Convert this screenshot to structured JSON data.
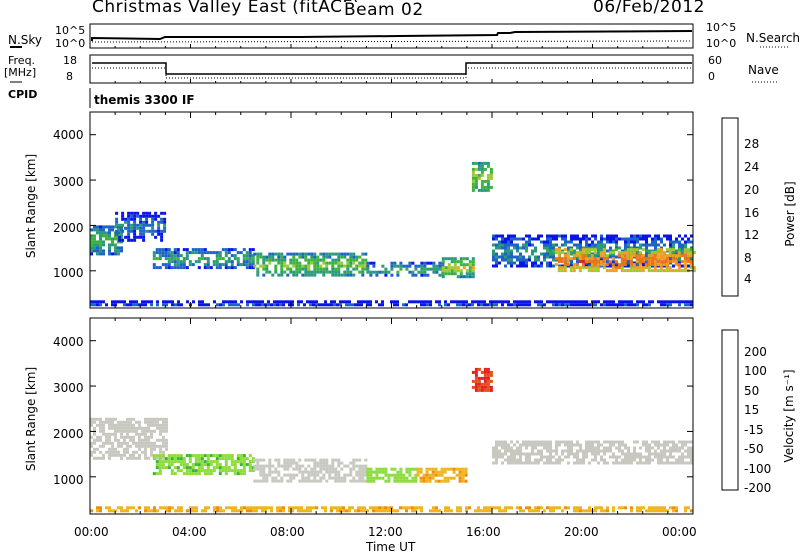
{
  "header": {
    "title": "Christmas Valley East (fitACF)",
    "beam": "Beam 02",
    "date": "06/Feb/2012"
  },
  "top_panels": {
    "nsky_label": "N.Sky",
    "nsky_ticks": [
      "10^5",
      "10^0"
    ],
    "nsearch_label": "N.Search",
    "nsearch_ticks": [
      "10^5",
      "10^0"
    ],
    "freq_label": "Freq.",
    "freq_unit": "[MHz]",
    "freq_ticks": [
      "18",
      "8"
    ],
    "nave_label": "Nave",
    "nave_ticks": [
      "60",
      "0"
    ],
    "cpid_label": "CPID",
    "cpid_value": "themis 3300 IF"
  },
  "chart_data": [
    {
      "type": "heatmap",
      "panel": "power",
      "ylabel": "Slant Range [km]",
      "ylim": [
        180,
        4500
      ],
      "xlim": [
        0,
        24
      ],
      "yticks": [
        "4000",
        "3000",
        "2000",
        "1000"
      ],
      "colorbar": {
        "label": "Power [dB]",
        "ticks": [
          "28",
          "24",
          "20",
          "16",
          "12",
          "8",
          "4"
        ],
        "colors": [
          "#0a14e6",
          "#1e64c8",
          "#2a9a7a",
          "#3cb43c",
          "#a0c832",
          "#f0a01e",
          "#f07814",
          "#e61e1e"
        ]
      },
      "bands": [
        {
          "t0": 0.0,
          "t1": 1.2,
          "r0": 1400,
          "r1": 2000,
          "level": 16
        },
        {
          "t0": 1.0,
          "t1": 3.0,
          "r0": 1700,
          "r1": 2300,
          "level": 10
        },
        {
          "t0": 2.5,
          "t1": 6.5,
          "r0": 1100,
          "r1": 1500,
          "level": 14
        },
        {
          "t0": 6.5,
          "t1": 11.0,
          "r0": 900,
          "r1": 1400,
          "level": 18
        },
        {
          "t0": 11.0,
          "t1": 14.0,
          "r0": 900,
          "r1": 1200,
          "level": 14
        },
        {
          "t0": 14.0,
          "t1": 15.2,
          "r0": 900,
          "r1": 1300,
          "level": 20
        },
        {
          "t0": 16.0,
          "t1": 24.0,
          "r0": 1100,
          "r1": 1800,
          "level": 12
        },
        {
          "t0": 18.5,
          "t1": 24.0,
          "r0": 1000,
          "r1": 1500,
          "level": 28
        },
        {
          "t0": 15.2,
          "t1": 16.0,
          "r0": 2800,
          "r1": 3400,
          "level": 20
        },
        {
          "t0": 0.0,
          "t1": 24.0,
          "r0": 250,
          "r1": 350,
          "level": 8
        }
      ]
    },
    {
      "type": "heatmap",
      "panel": "velocity",
      "ylabel": "Slant Range [km]",
      "ylim": [
        180,
        4500
      ],
      "xlim": [
        0,
        24
      ],
      "yticks": [
        "4000",
        "3000",
        "2000",
        "1000"
      ],
      "colorbar": {
        "label": "Velocity [m s⁻¹]",
        "ticks": [
          "200",
          "100",
          "50",
          "15",
          "-15",
          "-50",
          "-100",
          "-200"
        ],
        "colors": [
          "#1432a0",
          "#1e78b4",
          "#3cb43c",
          "#8cdc3c",
          "#c8c8c0",
          "#f0b41e",
          "#f08c14",
          "#e65014",
          "#e61e1e"
        ]
      },
      "bands": [
        {
          "t0": 0.0,
          "t1": 3.0,
          "r0": 1400,
          "r1": 2300,
          "level": 0
        },
        {
          "t0": 2.5,
          "t1": 6.5,
          "r0": 1100,
          "r1": 1500,
          "level": 40
        },
        {
          "t0": 6.5,
          "t1": 11.0,
          "r0": 900,
          "r1": 1400,
          "level": 0
        },
        {
          "t0": 11.0,
          "t1": 13.0,
          "r0": 900,
          "r1": 1200,
          "level": 30
        },
        {
          "t0": 13.0,
          "t1": 15.0,
          "r0": 900,
          "r1": 1200,
          "level": -40
        },
        {
          "t0": 16.0,
          "t1": 24.0,
          "r0": 1300,
          "r1": 1800,
          "level": 0
        },
        {
          "t0": 15.2,
          "t1": 16.0,
          "r0": 2900,
          "r1": 3400,
          "level": -200
        },
        {
          "t0": 0.0,
          "t1": 24.0,
          "r0": 250,
          "r1": 350,
          "level": -40
        }
      ]
    }
  ],
  "x_axis": {
    "ticks": [
      "00:00",
      "04:00",
      "08:00",
      "12:00",
      "16:00",
      "20:00",
      "00:00"
    ],
    "label": "Time UT"
  }
}
